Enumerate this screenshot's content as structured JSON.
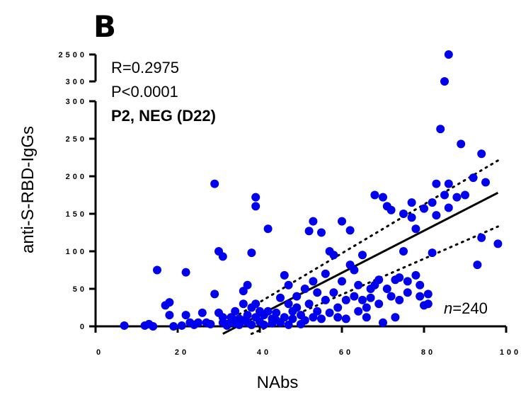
{
  "panel_letter": "B",
  "chart_data": {
    "type": "scatter",
    "xlabel": "NAbs",
    "ylabel": "anti-S-RBD-IgGs",
    "xlim": [
      0,
      100
    ],
    "ylim": [
      0,
      300
    ],
    "y_break": {
      "upper_ticks": [
        "300",
        "2500"
      ]
    },
    "x_ticks": [
      "0",
      "20",
      "40",
      "60",
      "80",
      "100"
    ],
    "y_ticks": [
      "0",
      "50",
      "100",
      "150",
      "200",
      "250",
      "300"
    ],
    "annotations": {
      "r": "R=0.2975",
      "p": "P<0.0001",
      "group": "P2, NEG (D22)",
      "n_italic": "n",
      "n_value": "=240"
    },
    "regression": {
      "x": [
        31,
        98
      ],
      "y": [
        -10,
        178
      ]
    },
    "ci_upper": {
      "x": [
        31,
        98
      ],
      "y": [
        3,
        221
      ]
    },
    "ci_lower": {
      "x": [
        38,
        98
      ],
      "y": [
        -10,
        133
      ]
    },
    "points_upper_break": [
      {
        "x": 86,
        "y": 2500
      },
      {
        "x": 85,
        "y": 300
      }
    ],
    "points": [
      {
        "x": 7,
        "y": 1
      },
      {
        "x": 12,
        "y": 1
      },
      {
        "x": 13,
        "y": 3
      },
      {
        "x": 14,
        "y": 0
      },
      {
        "x": 15,
        "y": 75
      },
      {
        "x": 17,
        "y": 28
      },
      {
        "x": 18,
        "y": 32
      },
      {
        "x": 18,
        "y": 15
      },
      {
        "x": 19,
        "y": 0
      },
      {
        "x": 21,
        "y": 1
      },
      {
        "x": 22,
        "y": 72
      },
      {
        "x": 22,
        "y": 15
      },
      {
        "x": 23,
        "y": 5
      },
      {
        "x": 24,
        "y": 2
      },
      {
        "x": 25,
        "y": 5
      },
      {
        "x": 26,
        "y": 18
      },
      {
        "x": 27,
        "y": 5
      },
      {
        "x": 28,
        "y": 3
      },
      {
        "x": 29,
        "y": 190
      },
      {
        "x": 29,
        "y": 43
      },
      {
        "x": 30,
        "y": 100
      },
      {
        "x": 30,
        "y": 18
      },
      {
        "x": 31,
        "y": 93
      },
      {
        "x": 31,
        "y": 12
      },
      {
        "x": 31,
        "y": 5
      },
      {
        "x": 32,
        "y": 3
      },
      {
        "x": 32,
        "y": 1
      },
      {
        "x": 33,
        "y": 12
      },
      {
        "x": 33,
        "y": 6
      },
      {
        "x": 34,
        "y": 20
      },
      {
        "x": 34,
        "y": 4
      },
      {
        "x": 35,
        "y": 10
      },
      {
        "x": 35,
        "y": 2
      },
      {
        "x": 36,
        "y": 47
      },
      {
        "x": 36,
        "y": 30
      },
      {
        "x": 36,
        "y": 8
      },
      {
        "x": 37,
        "y": 55
      },
      {
        "x": 37,
        "y": 15
      },
      {
        "x": 37,
        "y": 5
      },
      {
        "x": 38,
        "y": 98
      },
      {
        "x": 38,
        "y": 25
      },
      {
        "x": 38,
        "y": 2
      },
      {
        "x": 39,
        "y": 172
      },
      {
        "x": 39,
        "y": 160
      },
      {
        "x": 39,
        "y": 30
      },
      {
        "x": 39,
        "y": 12
      },
      {
        "x": 40,
        "y": 20
      },
      {
        "x": 40,
        "y": 6
      },
      {
        "x": 41,
        "y": 15
      },
      {
        "x": 41,
        "y": 2
      },
      {
        "x": 42,
        "y": 130
      },
      {
        "x": 42,
        "y": 20
      },
      {
        "x": 43,
        "y": 10
      },
      {
        "x": 43,
        "y": 4
      },
      {
        "x": 44,
        "y": 18
      },
      {
        "x": 44,
        "y": 8
      },
      {
        "x": 45,
        "y": 5
      },
      {
        "x": 45,
        "y": 38
      },
      {
        "x": 46,
        "y": 12
      },
      {
        "x": 46,
        "y": 68
      },
      {
        "x": 47,
        "y": 55
      },
      {
        "x": 47,
        "y": 30
      },
      {
        "x": 47,
        "y": 2
      },
      {
        "x": 48,
        "y": 20
      },
      {
        "x": 48,
        "y": 10
      },
      {
        "x": 49,
        "y": 40
      },
      {
        "x": 49,
        "y": 25
      },
      {
        "x": 50,
        "y": 15
      },
      {
        "x": 50,
        "y": 3
      },
      {
        "x": 51,
        "y": 50
      },
      {
        "x": 51,
        "y": 8
      },
      {
        "x": 52,
        "y": 127
      },
      {
        "x": 52,
        "y": 30
      },
      {
        "x": 53,
        "y": 140
      },
      {
        "x": 53,
        "y": 60
      },
      {
        "x": 53,
        "y": 12
      },
      {
        "x": 54,
        "y": 20
      },
      {
        "x": 54,
        "y": 45
      },
      {
        "x": 55,
        "y": 10
      },
      {
        "x": 55,
        "y": 125
      },
      {
        "x": 56,
        "y": 70
      },
      {
        "x": 56,
        "y": 35
      },
      {
        "x": 57,
        "y": 18
      },
      {
        "x": 57,
        "y": 100
      },
      {
        "x": 58,
        "y": 95
      },
      {
        "x": 58,
        "y": 45
      },
      {
        "x": 59,
        "y": 25
      },
      {
        "x": 59,
        "y": 12
      },
      {
        "x": 60,
        "y": 140
      },
      {
        "x": 60,
        "y": 60
      },
      {
        "x": 61,
        "y": 35
      },
      {
        "x": 61,
        "y": 10
      },
      {
        "x": 62,
        "y": 128
      },
      {
        "x": 62,
        "y": 82
      },
      {
        "x": 63,
        "y": 75
      },
      {
        "x": 63,
        "y": 40
      },
      {
        "x": 64,
        "y": 55
      },
      {
        "x": 64,
        "y": 20
      },
      {
        "x": 65,
        "y": 95
      },
      {
        "x": 65,
        "y": 35
      },
      {
        "x": 66,
        "y": 25
      },
      {
        "x": 66,
        "y": 12
      },
      {
        "x": 67,
        "y": 50
      },
      {
        "x": 67,
        "y": 38
      },
      {
        "x": 68,
        "y": 175
      },
      {
        "x": 68,
        "y": 55
      },
      {
        "x": 69,
        "y": 62
      },
      {
        "x": 69,
        "y": 30
      },
      {
        "x": 70,
        "y": 5
      },
      {
        "x": 70,
        "y": 172
      },
      {
        "x": 71,
        "y": 160
      },
      {
        "x": 71,
        "y": 50
      },
      {
        "x": 72,
        "y": 155
      },
      {
        "x": 72,
        "y": 40
      },
      {
        "x": 73,
        "y": 62
      },
      {
        "x": 73,
        "y": 12
      },
      {
        "x": 74,
        "y": 65
      },
      {
        "x": 74,
        "y": 35
      },
      {
        "x": 75,
        "y": 150
      },
      {
        "x": 75,
        "y": 100
      },
      {
        "x": 76,
        "y": 60
      },
      {
        "x": 76,
        "y": 45
      },
      {
        "x": 77,
        "y": 165
      },
      {
        "x": 77,
        "y": 145
      },
      {
        "x": 78,
        "y": 130
      },
      {
        "x": 78,
        "y": 68
      },
      {
        "x": 79,
        "y": 55
      },
      {
        "x": 79,
        "y": 40
      },
      {
        "x": 80,
        "y": 157
      },
      {
        "x": 80,
        "y": 28
      },
      {
        "x": 81,
        "y": 43
      },
      {
        "x": 81,
        "y": 30
      },
      {
        "x": 82,
        "y": 165
      },
      {
        "x": 82,
        "y": 98
      },
      {
        "x": 83,
        "y": 190
      },
      {
        "x": 83,
        "y": 148
      },
      {
        "x": 84,
        "y": 263
      },
      {
        "x": 85,
        "y": 175
      },
      {
        "x": 86,
        "y": 190
      },
      {
        "x": 86,
        "y": 158
      },
      {
        "x": 88,
        "y": 172
      },
      {
        "x": 89,
        "y": 243
      },
      {
        "x": 90,
        "y": 175
      },
      {
        "x": 92,
        "y": 198
      },
      {
        "x": 93,
        "y": 82
      },
      {
        "x": 94,
        "y": 230
      },
      {
        "x": 94,
        "y": 118
      },
      {
        "x": 95,
        "y": 192
      },
      {
        "x": 98,
        "y": 110
      }
    ]
  }
}
